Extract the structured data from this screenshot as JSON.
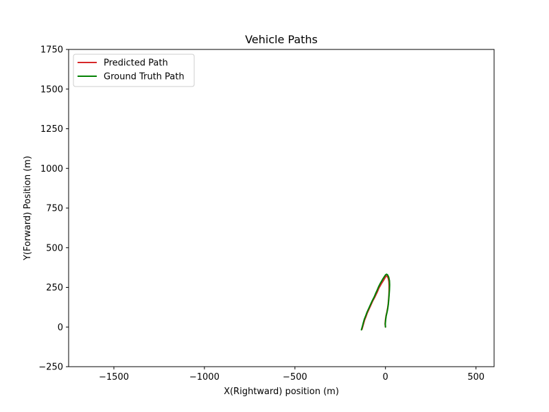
{
  "chart_data": {
    "type": "line",
    "title": "Vehicle Paths",
    "xlabel": "X(Rightward) position (m)",
    "ylabel": "Y(Forward) Position (m)",
    "xlim": [
      -1750,
      600
    ],
    "ylim": [
      -250,
      1750
    ],
    "xticks": [
      -1500,
      -1000,
      -500,
      0,
      500
    ],
    "yticks": [
      -250,
      0,
      250,
      500,
      750,
      1000,
      1250,
      1500,
      1750
    ],
    "grid": false,
    "legend_position": "top-left",
    "series": [
      {
        "name": "Predicted Path",
        "color": "#d62728",
        "x": [
          0,
          -2,
          0,
          3,
          8,
          12,
          15,
          17,
          19,
          20,
          20,
          19,
          16,
          11,
          5,
          0,
          -5,
          -12,
          -20,
          -28,
          -36,
          -44,
          -52,
          -60,
          -70,
          -80,
          -90,
          -100,
          -108,
          -115,
          -120,
          -125,
          -130
        ],
        "y": [
          0,
          20,
          45,
          70,
          95,
          120,
          145,
          170,
          200,
          230,
          260,
          285,
          305,
          318,
          322,
          316,
          305,
          292,
          278,
          262,
          246,
          224,
          205,
          186,
          165,
          140,
          115,
          90,
          65,
          45,
          25,
          5,
          -15
        ]
      },
      {
        "name": "Ground Truth Path",
        "color": "#008000",
        "x": [
          0,
          -1,
          1,
          4,
          9,
          13,
          16,
          18,
          20,
          22,
          23,
          22,
          18,
          12,
          6,
          0,
          -6,
          -14,
          -22,
          -30,
          -38,
          -46,
          -54,
          -62,
          -72,
          -82,
          -92,
          -102,
          -110,
          -117,
          -122,
          -127,
          -133
        ],
        "y": [
          0,
          20,
          45,
          70,
          95,
          120,
          145,
          172,
          202,
          234,
          266,
          292,
          314,
          328,
          333,
          328,
          318,
          304,
          288,
          272,
          254,
          232,
          212,
          190,
          168,
          143,
          118,
          93,
          68,
          48,
          28,
          6,
          -18
        ]
      }
    ]
  }
}
